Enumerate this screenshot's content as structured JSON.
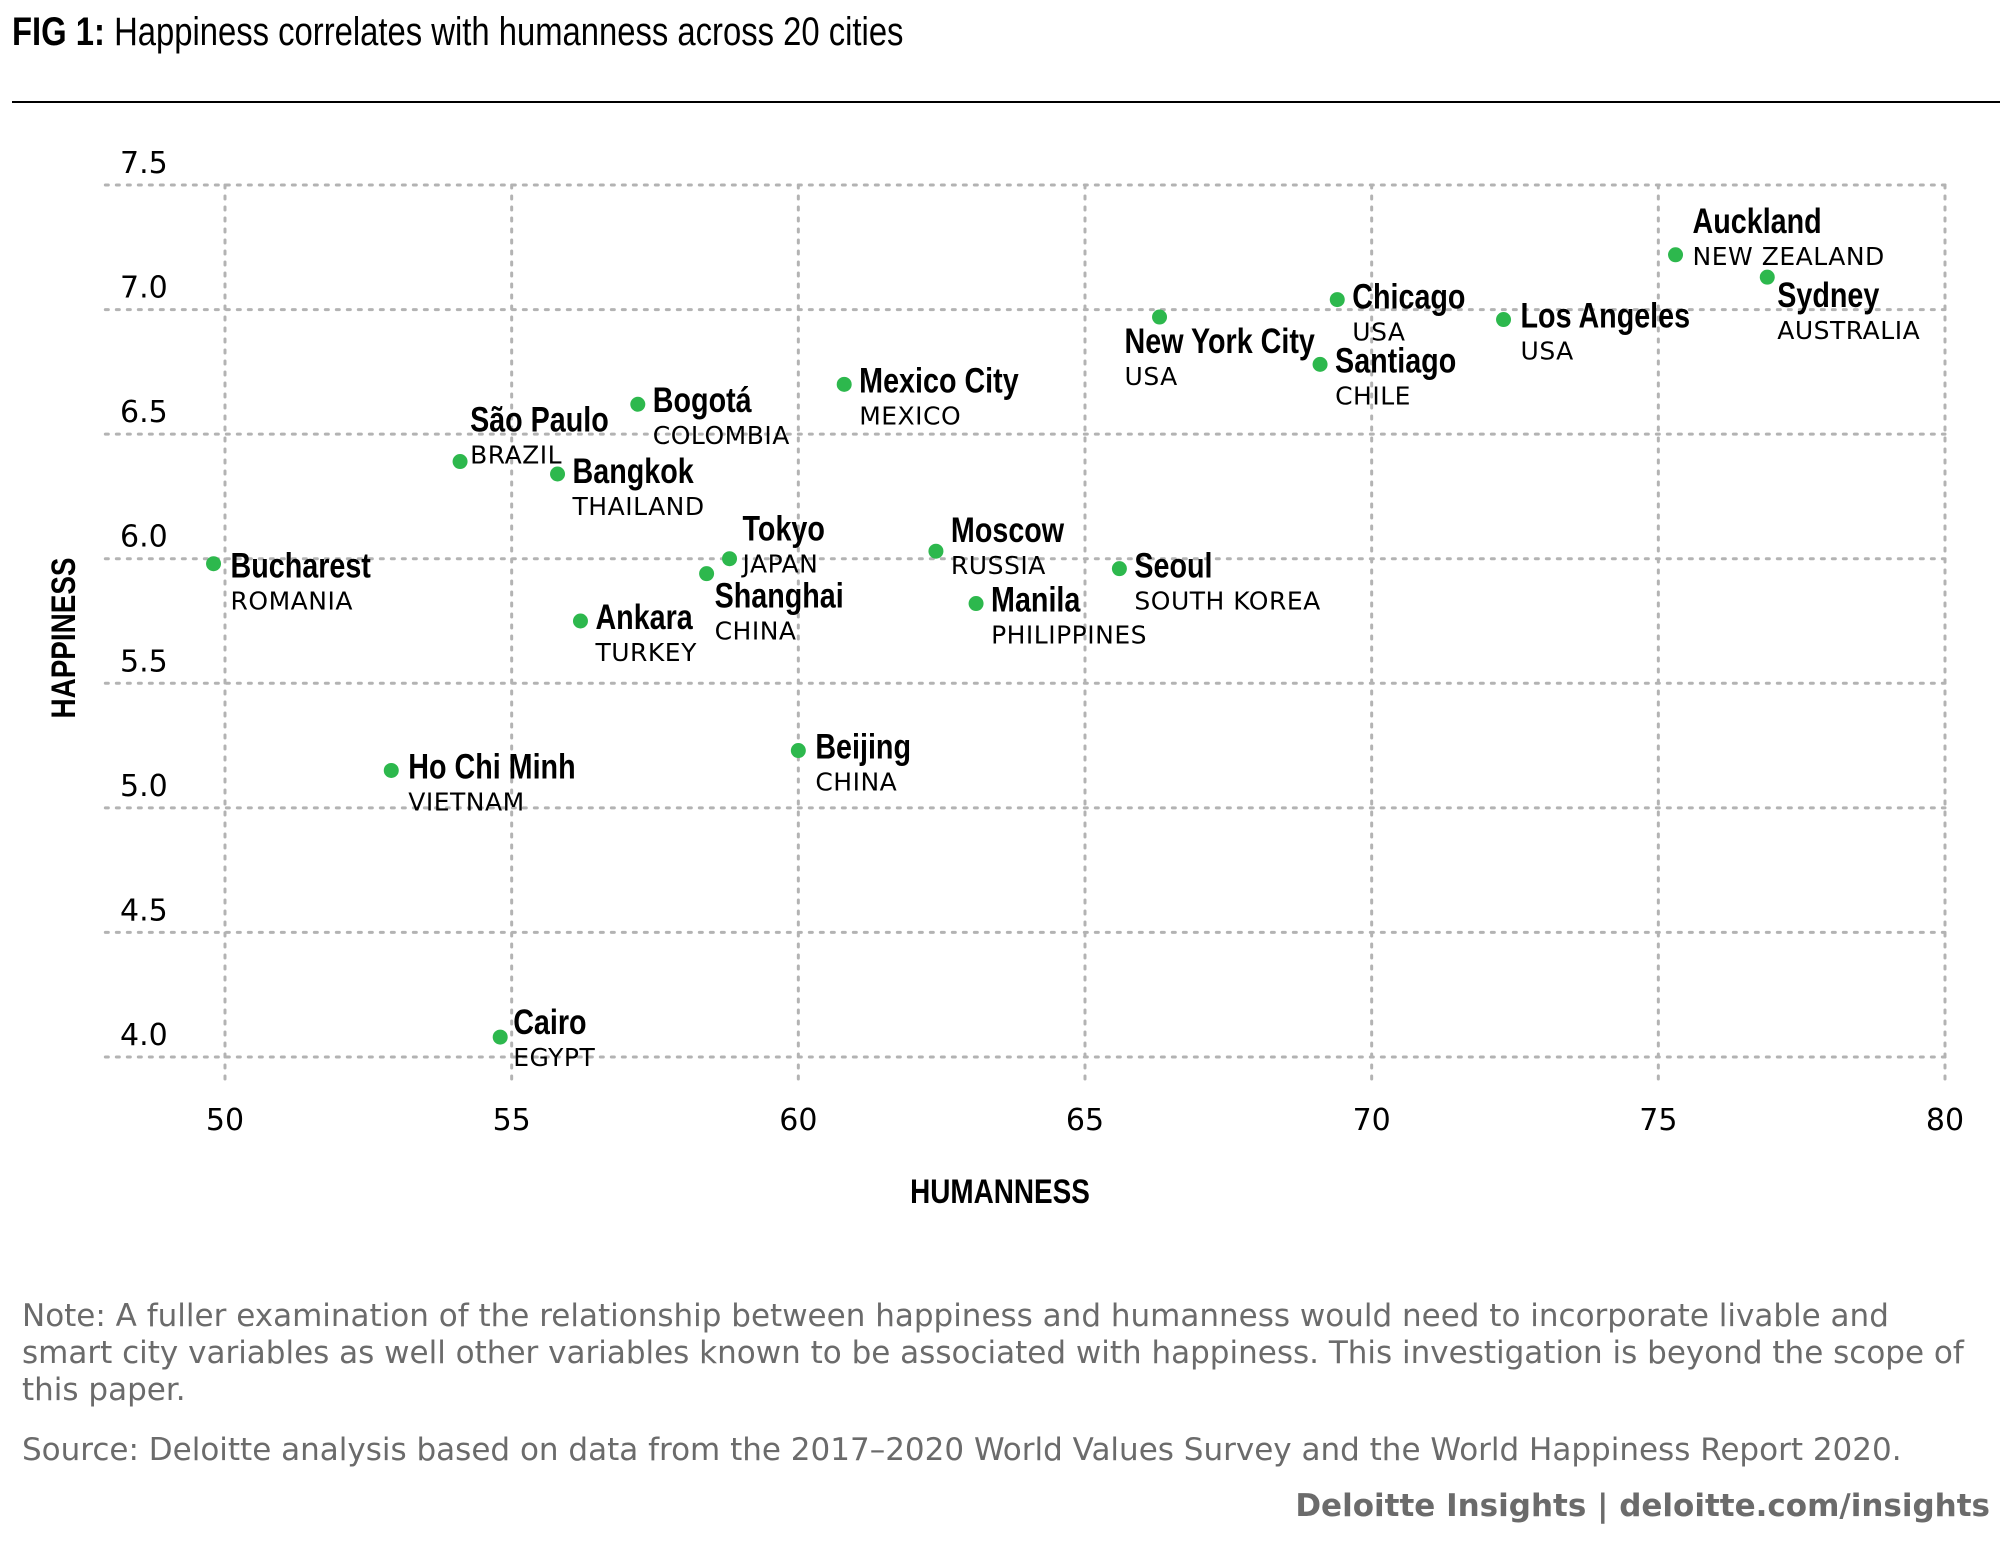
{
  "header": {
    "fig_label": "FIG 1:",
    "title": "Happiness correlates with humanness across 20 cities"
  },
  "colors": {
    "point": "#2db84d",
    "grid": "#b3b3b3",
    "text": "#000000",
    "muted": "#6b6b6b"
  },
  "chart_data": {
    "type": "scatter",
    "xlabel": "HUMANNESS",
    "ylabel": "HAPPINESS",
    "xlim": [
      48,
      80
    ],
    "ylim": [
      3.9,
      7.5
    ],
    "x_ticks": [
      50,
      55,
      60,
      65,
      70,
      75,
      80
    ],
    "y_ticks": [
      4.0,
      4.5,
      5.0,
      5.5,
      6.0,
      6.5,
      7.0,
      7.5
    ],
    "grid": true,
    "legend": "none",
    "points": [
      {
        "city": "Auckland",
        "country": "NEW ZEALAND",
        "x": 75.3,
        "y": 7.22
      },
      {
        "city": "Sydney",
        "country": "AUSTRALIA",
        "x": 76.9,
        "y": 7.13
      },
      {
        "city": "Chicago",
        "country": "USA",
        "x": 69.4,
        "y": 7.04
      },
      {
        "city": "Los Angeles",
        "country": "USA",
        "x": 72.3,
        "y": 6.96
      },
      {
        "city": "New York City",
        "country": "USA",
        "x": 66.3,
        "y": 6.97
      },
      {
        "city": "Santiago",
        "country": "CHILE",
        "x": 69.1,
        "y": 6.78
      },
      {
        "city": "Mexico City",
        "country": "MEXICO",
        "x": 60.8,
        "y": 6.7
      },
      {
        "city": "Bogotá",
        "country": "COLOMBIA",
        "x": 57.2,
        "y": 6.62
      },
      {
        "city": "São Paulo",
        "country": "BRAZIL",
        "x": 54.1,
        "y": 6.39
      },
      {
        "city": "Bangkok",
        "country": "THAILAND",
        "x": 55.8,
        "y": 6.34
      },
      {
        "city": "Bucharest",
        "country": "ROMANIA",
        "x": 49.8,
        "y": 5.98
      },
      {
        "city": "Tokyo",
        "country": "JAPAN",
        "x": 58.8,
        "y": 6.0
      },
      {
        "city": "Shanghai",
        "country": "CHINA",
        "x": 58.4,
        "y": 5.94
      },
      {
        "city": "Moscow",
        "country": "RUSSIA",
        "x": 62.4,
        "y": 6.03
      },
      {
        "city": "Seoul",
        "country": "SOUTH KOREA",
        "x": 65.6,
        "y": 5.96
      },
      {
        "city": "Manila",
        "country": "PHILIPPINES",
        "x": 63.1,
        "y": 5.82
      },
      {
        "city": "Ankara",
        "country": "TURKEY",
        "x": 56.2,
        "y": 5.75
      },
      {
        "city": "Beijing",
        "country": "CHINA",
        "x": 60.0,
        "y": 5.23
      },
      {
        "city": "Ho Chi Minh",
        "country": "VIETNAM",
        "x": 52.9,
        "y": 5.15
      },
      {
        "city": "Cairo",
        "country": "EGYPT",
        "x": 54.8,
        "y": 4.08
      }
    ]
  },
  "footer": {
    "note": "Note: A fuller examination of the relationship between happiness and humanness would need to incorporate livable and smart city variables as well other variables known to be associated with happiness. This investigation is beyond the scope of this paper.",
    "source": "Source: Deloitte analysis based on data from the 2017–2020 World Values Survey and the World Happiness Report 2020.",
    "brand": "Deloitte Insights | deloitte.com/insights"
  }
}
